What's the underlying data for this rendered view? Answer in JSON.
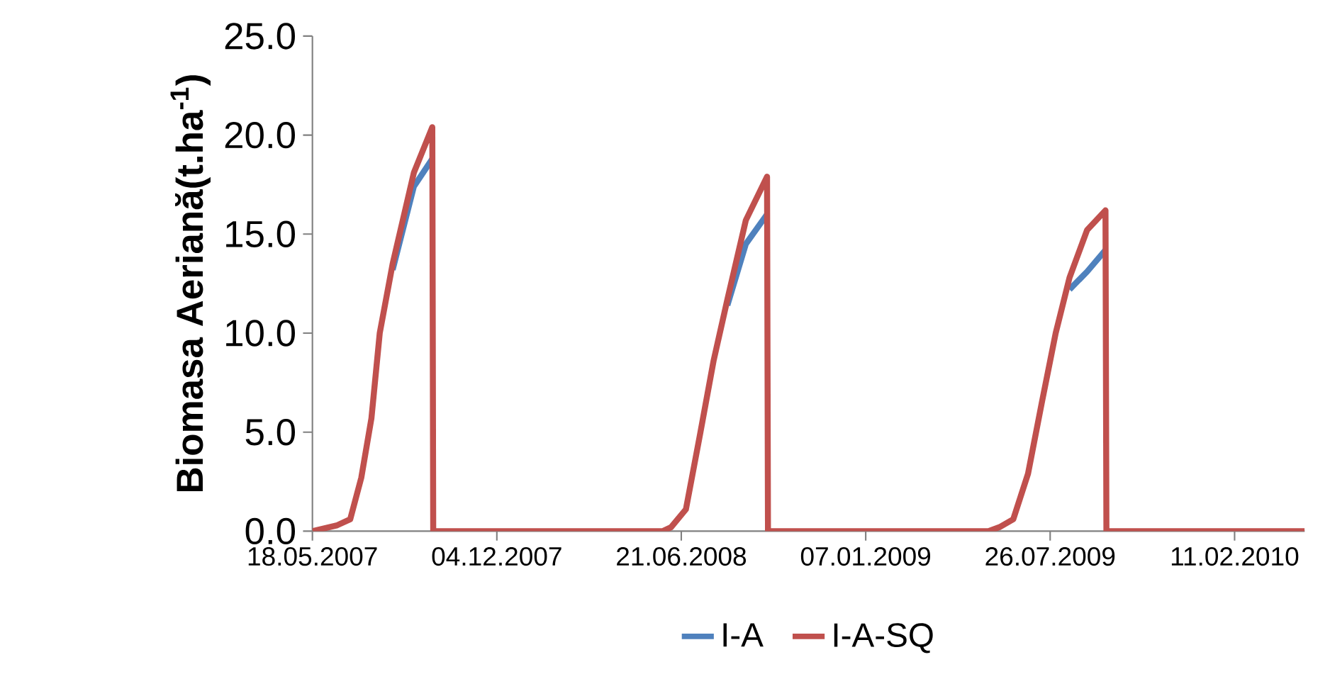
{
  "chart_data": {
    "type": "line",
    "ylabel": "Biomasa Aeriană(t.ha$^{-1}$)",
    "x": [
      "2007-05-18",
      "2007-06-14",
      "2007-06-28",
      "2007-07-10",
      "2007-07-21",
      "2007-07-30",
      "2007-08-13",
      "2007-09-05",
      "2007-09-25",
      "2007-09-26",
      "2008-06-01",
      "2008-06-10",
      "2008-06-26",
      "2008-07-11",
      "2008-07-26",
      "2008-08-10",
      "2008-08-30",
      "2008-09-22",
      "2008-09-23",
      "2009-05-20",
      "2009-06-01",
      "2009-06-16",
      "2009-07-02",
      "2009-07-17",
      "2009-08-01",
      "2009-08-16",
      "2009-09-04",
      "2009-09-24",
      "2009-09-25",
      "2010-04-28"
    ],
    "series": [
      {
        "name": "I-A",
        "color": "#4f81bd",
        "values": [
          null,
          null,
          null,
          null,
          null,
          null,
          13.2,
          17.4,
          18.8,
          null,
          null,
          null,
          null,
          null,
          null,
          11.4,
          14.5,
          16.0,
          null,
          null,
          null,
          null,
          null,
          null,
          null,
          12.2,
          13.1,
          14.2,
          null,
          null
        ]
      },
      {
        "name": "I-A-SQ",
        "color": "#c0504d",
        "values": [
          0,
          0.3,
          0.6,
          2.7,
          5.7,
          10.0,
          13.5,
          18.1,
          20.4,
          0,
          0,
          0.2,
          1.1,
          4.8,
          8.6,
          11.7,
          15.7,
          17.9,
          0,
          0,
          0.2,
          0.6,
          2.9,
          6.5,
          10.0,
          12.8,
          15.2,
          16.2,
          0,
          0
        ]
      }
    ],
    "xlim": [
      "2007-05-18",
      "2010-04-28"
    ],
    "xticks": [
      {
        "value": "2007-05-18",
        "label": "18.05.2007"
      },
      {
        "value": "2007-12-04",
        "label": "04.12.2007"
      },
      {
        "value": "2008-06-21",
        "label": "21.06.2008"
      },
      {
        "value": "2009-01-07",
        "label": "07.01.2009"
      },
      {
        "value": "2009-07-26",
        "label": "26.07.2009"
      },
      {
        "value": "2010-02-11",
        "label": "11.02.2010"
      }
    ],
    "ylim": [
      0,
      25
    ],
    "yticks": [
      {
        "value": 0,
        "label": "0.0"
      },
      {
        "value": 5,
        "label": "5.0"
      },
      {
        "value": 10,
        "label": "10.0"
      },
      {
        "value": 15,
        "label": "15.0"
      },
      {
        "value": 20,
        "label": "20.0"
      },
      {
        "value": 25,
        "label": "25.0"
      }
    ],
    "grid": false,
    "legend": "bottom",
    "marker": "none",
    "line_style": "solid"
  }
}
